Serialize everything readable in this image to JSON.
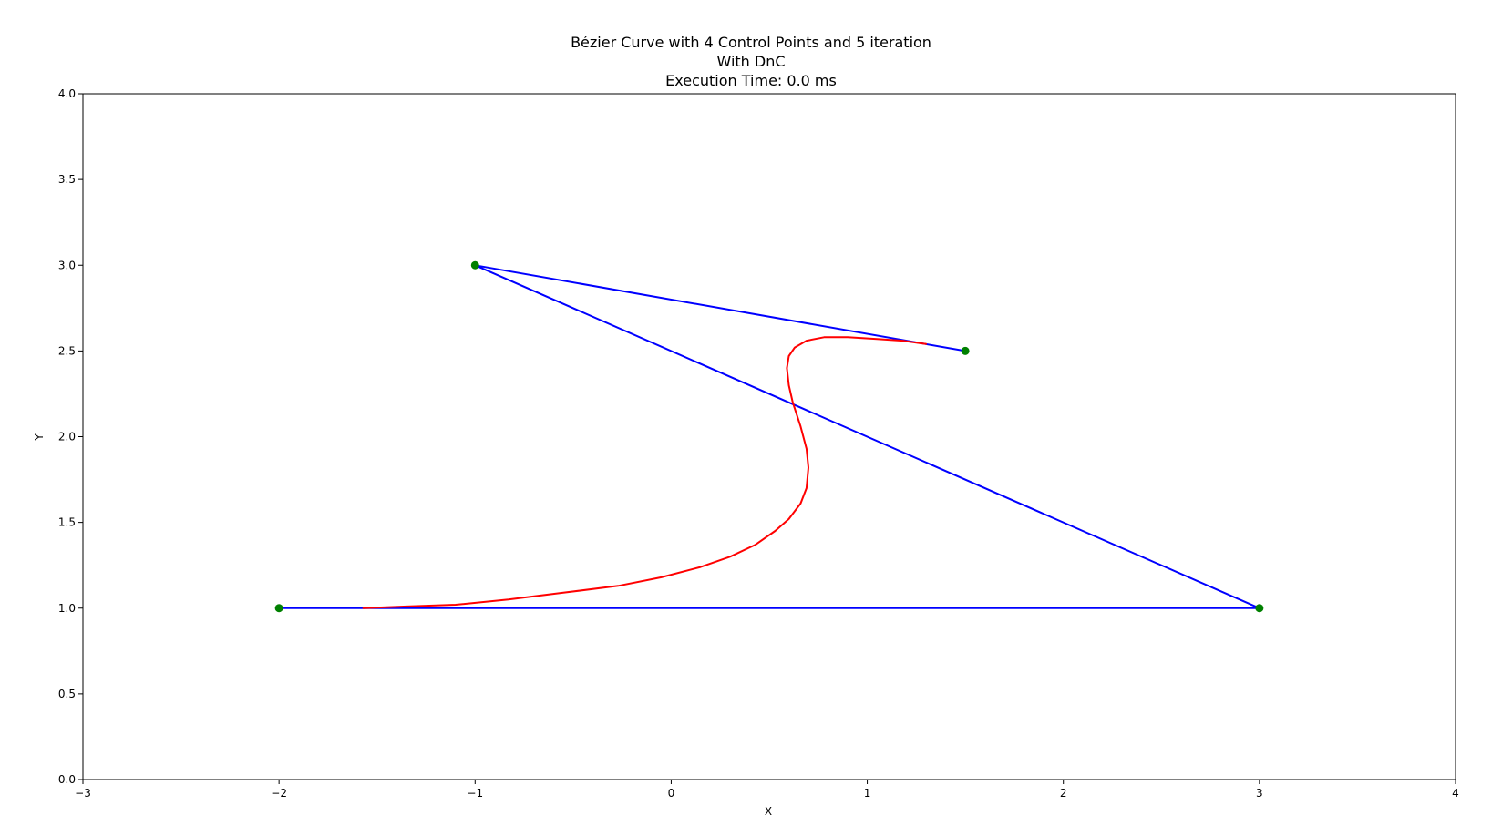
{
  "chart_data": {
    "type": "line",
    "title_lines": [
      "Bézier Curve with 4 Control Points and 5 iteration",
      "With DnC",
      "Execution Time: 0.0 ms"
    ],
    "xlabel": "X",
    "ylabel": "Y",
    "xlim": [
      -3,
      4
    ],
    "ylim": [
      0,
      4
    ],
    "x_ticks": [
      {
        "value": -3,
        "label": "−3"
      },
      {
        "value": -2,
        "label": "−2"
      },
      {
        "value": -1,
        "label": "−1"
      },
      {
        "value": 0,
        "label": "0"
      },
      {
        "value": 1,
        "label": "1"
      },
      {
        "value": 2,
        "label": "2"
      },
      {
        "value": 3,
        "label": "3"
      },
      {
        "value": 4,
        "label": "4"
      }
    ],
    "y_ticks": [
      {
        "value": 0,
        "label": "0.0"
      },
      {
        "value": 0.5,
        "label": "0.5"
      },
      {
        "value": 1,
        "label": "1.0"
      },
      {
        "value": 1.5,
        "label": "1.5"
      },
      {
        "value": 2,
        "label": "2.0"
      },
      {
        "value": 2.5,
        "label": "2.5"
      },
      {
        "value": 3,
        "label": "3.0"
      },
      {
        "value": 3.5,
        "label": "3.5"
      },
      {
        "value": 4,
        "label": "4.0"
      }
    ],
    "grid": false,
    "series": [
      {
        "kind": "control-polygon",
        "color": "#0000ff",
        "points": [
          [
            -2,
            1
          ],
          [
            3,
            1
          ],
          [
            -1,
            3
          ],
          [
            1.5,
            2.5
          ]
        ]
      },
      {
        "kind": "bezier-curve",
        "color": "#ff0000",
        "points": [
          [
            -1.57,
            1.0
          ],
          [
            -1.35,
            1.01
          ],
          [
            -1.1,
            1.02
          ],
          [
            -0.83,
            1.05
          ],
          [
            -0.55,
            1.09
          ],
          [
            -0.27,
            1.13
          ],
          [
            -0.05,
            1.18
          ],
          [
            0.15,
            1.24
          ],
          [
            0.3,
            1.3
          ],
          [
            0.43,
            1.37
          ],
          [
            0.53,
            1.45
          ],
          [
            0.6,
            1.52
          ],
          [
            0.66,
            1.61
          ],
          [
            0.69,
            1.7
          ],
          [
            0.7,
            1.82
          ],
          [
            0.69,
            1.93
          ],
          [
            0.66,
            2.06
          ],
          [
            0.62,
            2.2
          ],
          [
            0.6,
            2.3
          ],
          [
            0.59,
            2.4
          ],
          [
            0.6,
            2.47
          ],
          [
            0.63,
            2.52
          ],
          [
            0.69,
            2.56
          ],
          [
            0.78,
            2.58
          ],
          [
            0.9,
            2.58
          ],
          [
            1.05,
            2.57
          ],
          [
            1.18,
            2.56
          ],
          [
            1.3,
            2.54
          ]
        ]
      },
      {
        "kind": "control-points",
        "color": "#008000",
        "points": [
          [
            -2,
            1
          ],
          [
            3,
            1
          ],
          [
            -1,
            3
          ],
          [
            1.5,
            2.5
          ]
        ]
      }
    ]
  }
}
